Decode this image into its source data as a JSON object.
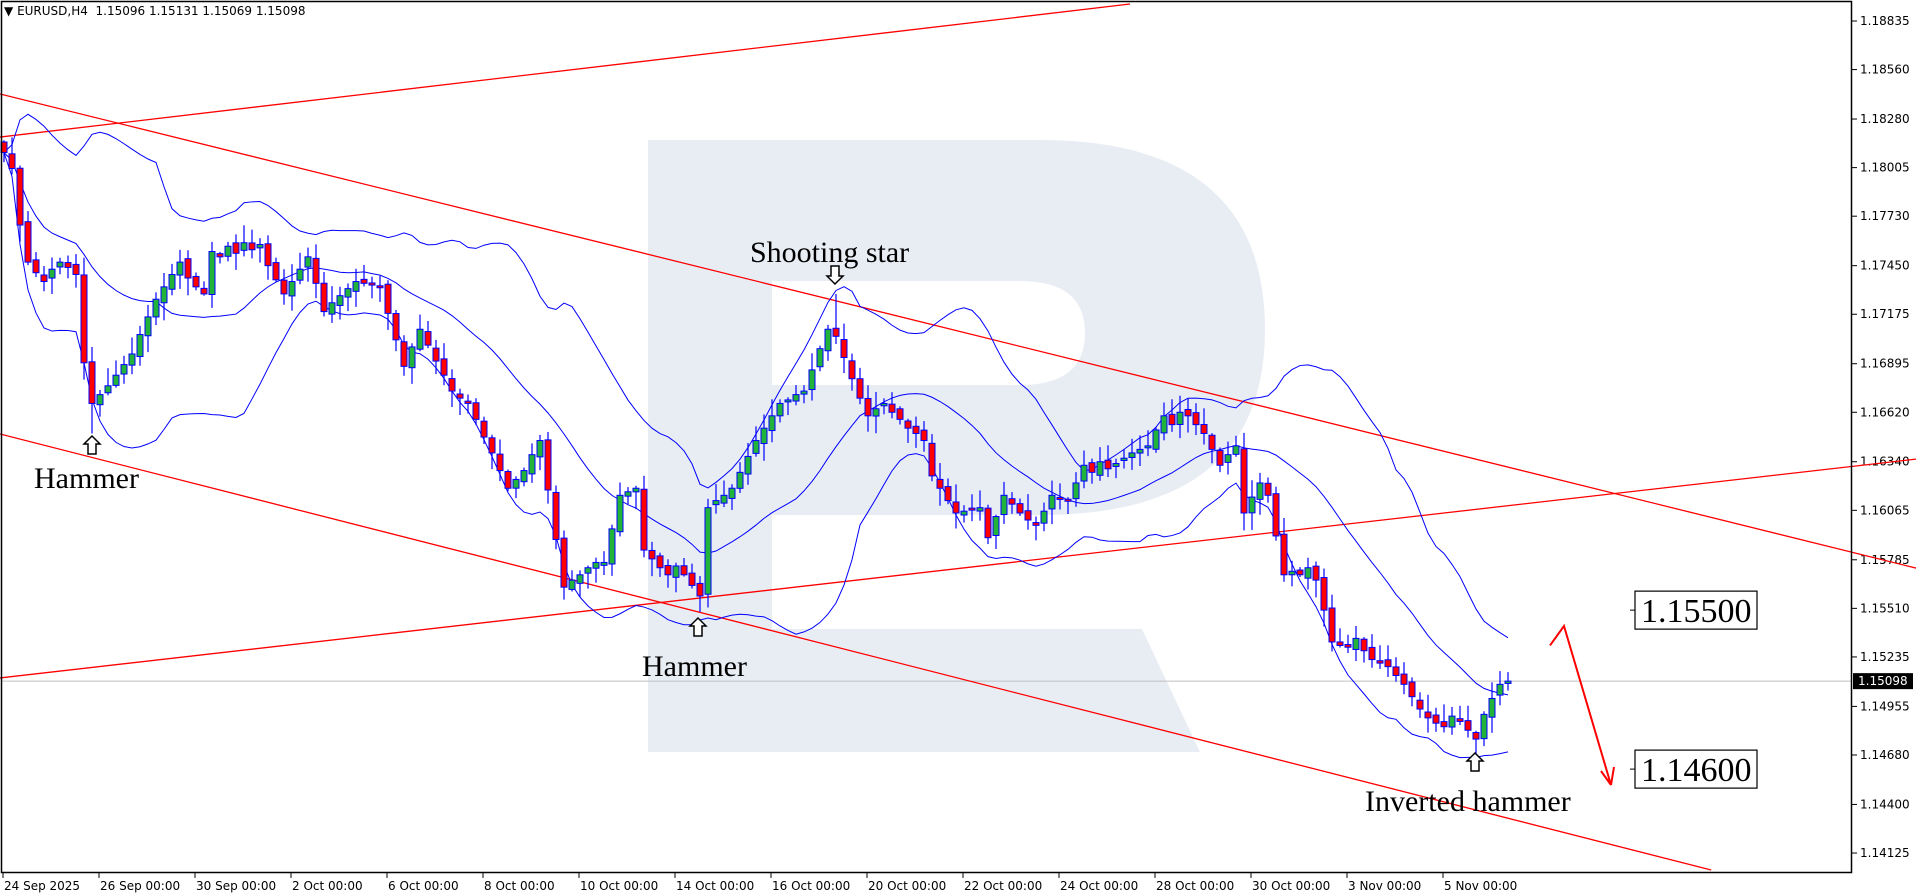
{
  "header": {
    "menu_icon": "triangle-down-icon",
    "symbol": "EURUSD,H4",
    "ohlc_text": "1.15096 1.15131 1.15069 1.15098"
  },
  "colors": {
    "bull": "#22b33a",
    "bear": "#ff0000",
    "outline": "#0000ff",
    "bands": "#0000ff",
    "trendline": "#ff0000",
    "watermark": "#e8edf4"
  },
  "chart_data": {
    "type": "candlestick",
    "symbol": "EURUSD",
    "timeframe": "H4",
    "indicator": "Bollinger Bands",
    "ylim": [
      1.14,
      1.1895
    ],
    "y_ticks": [
      "1.18835",
      "1.18560",
      "1.18280",
      "1.18005",
      "1.17730",
      "1.17450",
      "1.17175",
      "1.16895",
      "1.16620",
      "1.16340",
      "1.16065",
      "1.15785",
      "1.15510",
      "1.15235",
      "1.14955",
      "1.14680",
      "1.14400",
      "1.14125"
    ],
    "current_price": "1.15098",
    "x_ticks": [
      {
        "bar": 0,
        "label": "24 Sep 2025"
      },
      {
        "bar": 12,
        "label": "26 Sep 00:00"
      },
      {
        "bar": 24,
        "label": "30 Sep 00:00"
      },
      {
        "bar": 36,
        "label": "2 Oct 00:00"
      },
      {
        "bar": 48,
        "label": "6 Oct 00:00"
      },
      {
        "bar": 60,
        "label": "8 Oct 00:00"
      },
      {
        "bar": 72,
        "label": "10 Oct 00:00"
      },
      {
        "bar": 84,
        "label": "14 Oct 00:00"
      },
      {
        "bar": 96,
        "label": "16 Oct 00:00"
      },
      {
        "bar": 108,
        "label": "20 Oct 00:00"
      },
      {
        "bar": 120,
        "label": "22 Oct 00:00"
      },
      {
        "bar": 132,
        "label": "24 Oct 00:00"
      },
      {
        "bar": 144,
        "label": "28 Oct 00:00"
      },
      {
        "bar": 156,
        "label": "30 Oct 00:00"
      },
      {
        "bar": 168,
        "label": "3 Nov 00:00"
      },
      {
        "bar": 180,
        "label": "5 Nov 00:00"
      }
    ],
    "close": [
      1.1809,
      1.18,
      1.1768,
      1.1747,
      1.1741,
      1.1736,
      1.1743,
      1.1747,
      1.1744,
      1.174,
      1.169,
      1.1667,
      1.1672,
      1.1677,
      1.1683,
      1.1689,
      1.1695,
      1.1706,
      1.1716,
      1.1726,
      1.1733,
      1.174,
      1.1747,
      1.1738,
      1.1733,
      1.1729,
      1.1753,
      1.175,
      1.1756,
      1.1752,
      1.1758,
      1.1754,
      1.1757,
      1.1745,
      1.1737,
      1.1729,
      1.1736,
      1.1743,
      1.175,
      1.1735,
      1.1719,
      1.1724,
      1.1728,
      1.1732,
      1.1736,
      1.1735,
      1.1734,
      1.1733,
      1.1718,
      1.1703,
      1.1688,
      1.1699,
      1.1709,
      1.17,
      1.1691,
      1.1683,
      1.1674,
      1.167,
      1.1667,
      1.1658,
      1.1648,
      1.1639,
      1.1629,
      1.1619,
      1.1624,
      1.1629,
      1.1638,
      1.1646,
      1.1618,
      1.159,
      1.1563,
      1.1567,
      1.157,
      1.1574,
      1.1577,
      1.1577,
      1.1596,
      1.1615,
      1.1617,
      1.1619,
      1.1584,
      1.1579,
      1.1574,
      1.157,
      1.1575,
      1.157,
      1.1564,
      1.1558,
      1.1608,
      1.1612,
      1.1615,
      1.1619,
      1.1628,
      1.1637,
      1.1646,
      1.1653,
      1.166,
      1.1667,
      1.1669,
      1.1672,
      1.1674,
      1.1686,
      1.1698,
      1.1709,
      1.1705,
      1.1693,
      1.1681,
      1.167,
      1.166,
      1.1664,
      1.1667,
      1.1662,
      1.1658,
      1.1653,
      1.165,
      1.1646,
      1.1626,
      1.1619,
      1.1612,
      1.1605,
      1.1606,
      1.1607,
      1.1608,
      1.1591,
      1.1603,
      1.1615,
      1.161,
      1.1605,
      1.1601,
      1.1598,
      1.1606,
      1.1615,
      1.1613,
      1.1612,
      1.1622,
      1.1632,
      1.1628,
      1.1634,
      1.163,
      1.1633,
      1.1636,
      1.1639,
      1.1641,
      1.1643,
      1.1652,
      1.166,
      1.1655,
      1.1662,
      1.166,
      1.1655,
      1.165,
      1.1641,
      1.1632,
      1.1638,
      1.1643,
      1.1605,
      1.1614,
      1.1622,
      1.1615,
      1.1592,
      1.157,
      1.1572,
      1.157,
      1.1574,
      1.1567,
      1.155,
      1.1532,
      1.153,
      1.1529,
      1.1534,
      1.1527,
      1.1522,
      1.152,
      1.1518,
      1.1513,
      1.1508,
      1.1501,
      1.1494,
      1.1489,
      1.1486,
      1.1484,
      1.149,
      1.1487,
      1.1482,
      1.1477,
      1.1491,
      1.15,
      1.1508,
      1.15098
    ],
    "extremes": [
      {
        "bar": 11,
        "low": 1.165
      },
      {
        "bar": 87,
        "low": 1.1549
      },
      {
        "bar": 104,
        "high": 1.1729
      },
      {
        "bar": 184,
        "low": 1.1468
      }
    ],
    "trendlines": [
      {
        "from": [
          -0.5,
          1.18178
        ],
        "to": [
          140.75,
          1.18931
        ]
      },
      {
        "from": [
          -0.5,
          1.18422
        ],
        "to": [
          239,
          1.15738
        ]
      },
      {
        "from": [
          -0.5,
          1.16497
        ],
        "to": [
          213.4,
          1.14029
        ]
      },
      {
        "from": [
          -0.5,
          1.15116
        ],
        "to": [
          239,
          1.16355
        ]
      }
    ],
    "annotations": [
      {
        "text": "Hammer",
        "bar": 11,
        "direction": "up"
      },
      {
        "text": "Hammer",
        "bar": 87,
        "direction": "up"
      },
      {
        "text": "Shooting star",
        "bar": 104,
        "direction": "down"
      },
      {
        "text": "Inverted hammer",
        "bar": 184,
        "direction": "up"
      }
    ],
    "targets": [
      "1.15500",
      "1.14600"
    ],
    "forecast_arrow": {
      "from": 1.153,
      "peak": 1.1541,
      "to": 1.1451
    }
  }
}
